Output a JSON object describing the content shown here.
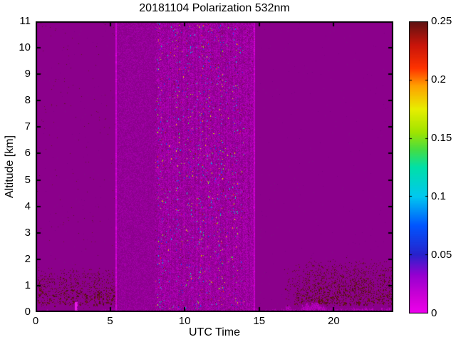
{
  "chart_data": {
    "type": "heatmap",
    "title": "20181104 Polarization 532nm",
    "xlabel": "UTC Time",
    "ylabel": "Altitude [km]",
    "x_axis": {
      "label": "UTC Time",
      "range": [
        0,
        24
      ],
      "ticks": [
        0,
        5,
        10,
        15,
        20
      ]
    },
    "y_axis": {
      "label": "Altitude [km]",
      "range": [
        0,
        11
      ],
      "ticks": [
        0,
        1,
        2,
        3,
        4,
        5,
        6,
        7,
        8,
        9,
        10,
        11
      ]
    },
    "colorbar": {
      "range": [
        0,
        0.25
      ],
      "tick_values": [
        0,
        0.05,
        0.1,
        0.15,
        0.2,
        0.25
      ],
      "tick_labels": [
        "0",
        "0.05",
        "0.1",
        "0.15",
        "0.2",
        "0.25"
      ]
    },
    "plot_bg": "#8B008B",
    "figure_bg": "#ffffff",
    "axis_color": "#000000",
    "colormap": [
      [
        0.0,
        "#EE00EE"
      ],
      [
        0.06,
        "#CC00D6"
      ],
      [
        0.13,
        "#9600D0"
      ],
      [
        0.2,
        "#2822CC"
      ],
      [
        0.3,
        "#0055FF"
      ],
      [
        0.4,
        "#00C8F0"
      ],
      [
        0.5,
        "#00E0A8"
      ],
      [
        0.56,
        "#44DD44"
      ],
      [
        0.62,
        "#9FE400"
      ],
      [
        0.7,
        "#E8EE00"
      ],
      [
        0.78,
        "#FFA000"
      ],
      [
        0.84,
        "#FF3300"
      ],
      [
        0.92,
        "#C8140A"
      ],
      [
        1.0,
        "#5E1212"
      ]
    ],
    "regions": [
      {
        "type": "noise",
        "seed": 11,
        "t": [
          5.45,
          8.02
        ],
        "alt": [
          0,
          11
        ],
        "density": 0.55,
        "colors": [
          "#930099",
          "#9B00A1",
          "#A500A9"
        ]
      },
      {
        "type": "noise",
        "seed": 12,
        "t": [
          8.02,
          14.68
        ],
        "alt": [
          0,
          11
        ],
        "density": 0.6,
        "stripes": true,
        "colors": [
          "#98009E",
          "#A400AA",
          "#B000B4",
          "#BA00BE"
        ]
      },
      {
        "type": "dots",
        "seed": 13,
        "t": [
          0,
          24
        ],
        "alt": [
          0,
          11
        ],
        "density": 0.004,
        "colors": [
          "#7C0084",
          "#801086"
        ]
      },
      {
        "type": "dots",
        "seed": 14,
        "t": [
          0,
          5.4
        ],
        "alt": [
          0,
          11
        ],
        "density": 0.0035,
        "colors": [
          "#5E1030",
          "#6A1430"
        ]
      },
      {
        "type": "dots",
        "seed": 15,
        "t": [
          8.02,
          14.68
        ],
        "alt": [
          0,
          11
        ],
        "density": 0.006,
        "colors": [
          "#5E1022",
          "#6E1426"
        ]
      },
      {
        "type": "speckles",
        "seed": 16,
        "t": [
          8.05,
          14.0
        ],
        "alt": [
          0.1,
          11
        ],
        "density": 0.012,
        "vmin": 0.035,
        "vmax": 0.25,
        "pow": 1.5,
        "columns": [
          8.35,
          9.6,
          10.3,
          11.05,
          11.65,
          12.4,
          13.35
        ],
        "colWidth": 0.2,
        "colBoost": 3
      },
      {
        "type": "bottomstrip",
        "seed": 17,
        "t": [
          0,
          24
        ],
        "maxAlt": 0.13,
        "fill": 0.5,
        "colors": [
          "#A200A8",
          "#AC00B0"
        ]
      },
      {
        "type": "layer",
        "seed": 18,
        "t": [
          0.15,
          5.35
        ],
        "alt": [
          0.22,
          1.75
        ],
        "peak": 0.17,
        "colors": [
          "#5C1212",
          "#6B1616",
          "#4E0E10"
        ]
      },
      {
        "type": "layer",
        "seed": 19,
        "t": [
          16.6,
          24
        ],
        "alt": [
          0.22,
          2.1
        ],
        "peak": 0.24,
        "riseT": 1.6,
        "colors": [
          "#5C1212",
          "#6B1616",
          "#4E0E10"
        ]
      },
      {
        "type": "bottomstrip",
        "seed": 20,
        "t": [
          16.8,
          24
        ],
        "maxAlt": 0.34,
        "fill": 0.8,
        "colors": [
          "#A800AE",
          "#B600BA",
          "#C200C6"
        ]
      },
      {
        "type": "vline",
        "seed": 21,
        "t": 5.38,
        "width": 2,
        "color": "#C800CC",
        "bright": "#E600E6"
      },
      {
        "type": "vline",
        "seed": 22,
        "t": 14.7,
        "width": 2,
        "color": "#BE00C4",
        "bright": "#DC00DC"
      },
      {
        "type": "blob",
        "seed": 23,
        "t": 2.66,
        "alt": [
          0.02,
          0.38
        ],
        "width": 3,
        "color": "#E818E8"
      }
    ]
  }
}
